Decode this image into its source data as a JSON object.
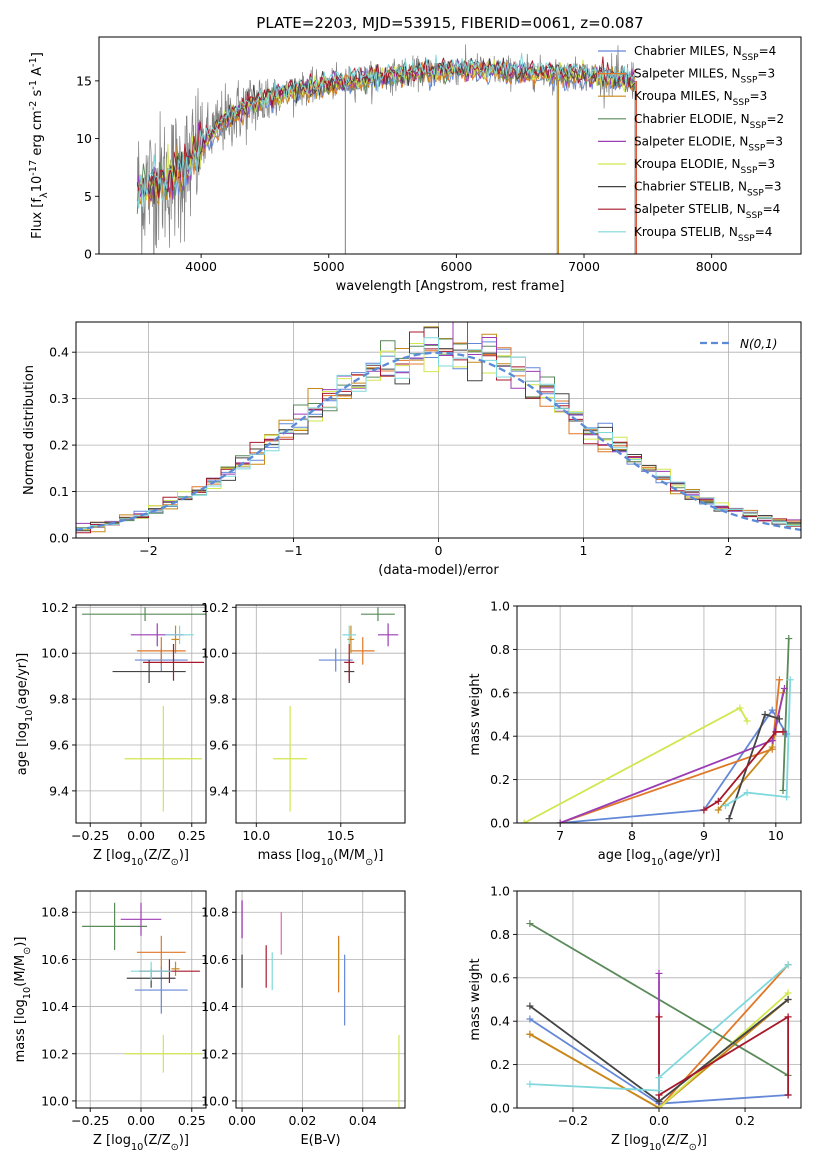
{
  "colors": {
    "Chabrier MILES": "#6488d8",
    "Salpeter MILES": "#e07828",
    "Kroupa MILES": "#c8881a",
    "Chabrier ELODIE": "#5a8a5a",
    "Salpeter ELODIE": "#9b3db5",
    "Kroupa ELODIE": "#d2e64e",
    "Chabrier STELIB": "#444444",
    "Salpeter STELIB": "#a8182a",
    "Kroupa STELIB": "#7ed8dc",
    "normal": "#5b8ad6",
    "data": "#7f7f7f",
    "pink": "#e06aa0"
  },
  "chart_data": [
    {
      "id": "spectrum",
      "type": "line",
      "title": "PLATE=2203, MJD=53915, FIBERID=0061, z=0.087",
      "xlabel": "wavelength [Angstrom, rest frame]",
      "ylabel": "Flux [f$_\\lambda$10$^{-17}$ erg cm$^{-2}$ s$^{-1}$ A$^{-1}$]",
      "xlim": [
        3200,
        8700
      ],
      "ylim": [
        0,
        18.8
      ],
      "xticks": [
        4000,
        5000,
        6000,
        7000,
        8000
      ],
      "yticks": [
        0,
        5,
        10,
        15
      ],
      "grid": false,
      "legend_position": "top-right",
      "continuum_x": [
        3500,
        3600,
        3700,
        3800,
        3900,
        4000,
        4200,
        4400,
        4600,
        4800,
        5000,
        5200,
        5400,
        5600,
        5800,
        6000,
        6200,
        6400,
        6600,
        6800,
        7000,
        7200,
        7400,
        7600,
        7800,
        8000,
        8200,
        8350
      ],
      "continuum_y": [
        5.5,
        6.0,
        6.3,
        6.8,
        7.5,
        9.5,
        11.8,
        13.0,
        13.8,
        14.3,
        14.7,
        15.0,
        15.3,
        15.6,
        15.8,
        16.0,
        16.0,
        15.8,
        15.7,
        15.6,
        15.5,
        15.2,
        15.0,
        14.9,
        14.8,
        14.7,
        14.6,
        14.6
      ],
      "series": [
        {
          "name": "Chabrier MILES, N$_{SSP}$=4"
        },
        {
          "name": "Salpeter MILES, N$_{SSP}$=3"
        },
        {
          "name": "Kroupa MILES, N$_{SSP}$=3"
        },
        {
          "name": "Chabrier ELODIE, N$_{SSP}$=2"
        },
        {
          "name": "Salpeter ELODIE, N$_{SSP}$=3"
        },
        {
          "name": "Kroupa ELODIE, N$_{SSP}$=3"
        },
        {
          "name": "Chabrier STELIB, N$_{SSP}$=3"
        },
        {
          "name": "Salpeter STELIB, N$_{SSP}$=4"
        },
        {
          "name": "Kroupa STELIB, N$_{SSP}$=4"
        }
      ]
    },
    {
      "id": "residuals",
      "type": "line",
      "xlabel": "(data-model)/error",
      "ylabel": "Normed distribution",
      "xlim": [
        -2.5,
        2.5
      ],
      "ylim": [
        0,
        0.465
      ],
      "xticks": [
        -2,
        -1,
        0,
        1,
        2
      ],
      "yticks": [
        0.0,
        0.1,
        0.2,
        0.3,
        0.4
      ],
      "grid": true,
      "legend_position": "top-right",
      "legend": "$\\mathcal{N}(0,1)$",
      "bin_width": 0.1,
      "normal": {
        "mean": 0,
        "sd": 1
      }
    },
    {
      "id": "age_vs_Z",
      "type": "scatter",
      "xlabel": "Z [log$_{10}$($Z/Z_\\odot$)]",
      "ylabel": "age  [log$_{10}$($age/yr$)]",
      "xlim": [
        -0.32,
        0.32
      ],
      "ylim": [
        9.26,
        10.21
      ],
      "xticks": [
        -0.25,
        0.0,
        0.25
      ],
      "yticks": [
        9.4,
        9.6,
        9.8,
        10.0,
        10.2
      ],
      "grid": true,
      "points": [
        {
          "model": "Chabrier MILES",
          "x": 0.1,
          "y": 9.97,
          "xerr": 0.13,
          "yerr": 0.05
        },
        {
          "model": "Salpeter MILES",
          "x": 0.1,
          "y": 10.01,
          "xerr": 0.12,
          "yerr": 0.06
        },
        {
          "model": "Kroupa MILES",
          "x": 0.17,
          "y": 10.06,
          "xerr": 0.02,
          "yerr": 0.06
        },
        {
          "model": "Chabrier ELODIE",
          "x": 0.02,
          "y": 10.17,
          "xerr": 0.31,
          "yerr": 0.03
        },
        {
          "model": "Salpeter ELODIE",
          "x": 0.08,
          "y": 10.08,
          "xerr": 0.13,
          "yerr": 0.05
        },
        {
          "model": "Kroupa ELODIE",
          "x": 0.11,
          "y": 9.54,
          "xerr": 0.19,
          "yerr": 0.23
        },
        {
          "model": "Chabrier STELIB",
          "x": 0.04,
          "y": 9.92,
          "xerr": 0.18,
          "yerr": 0.05
        },
        {
          "model": "Salpeter STELIB",
          "x": 0.16,
          "y": 9.96,
          "xerr": 0.15,
          "yerr": 0.08
        },
        {
          "model": "Kroupa STELIB",
          "x": 0.19,
          "y": 10.08,
          "xerr": 0.07,
          "yerr": 0.04
        }
      ]
    },
    {
      "id": "age_vs_mass",
      "type": "scatter",
      "xlabel": "mass [log$_{10}$($M/M_\\odot$)]",
      "ylabel": "",
      "xlim": [
        9.88,
        10.88
      ],
      "ylim": [
        9.26,
        10.21
      ],
      "xticks": [
        10.0,
        10.5
      ],
      "yticks": [
        9.4,
        9.6,
        9.8,
        10.0,
        10.2
      ],
      "grid": true,
      "points": [
        {
          "model": "Chabrier MILES",
          "x": 10.47,
          "y": 9.97,
          "xerr": 0.1,
          "yerr": 0.05
        },
        {
          "model": "Salpeter MILES",
          "x": 10.63,
          "y": 10.01,
          "xerr": 0.07,
          "yerr": 0.06
        },
        {
          "model": "Kroupa MILES",
          "x": 10.56,
          "y": 10.06,
          "xerr": 0.02,
          "yerr": 0.06
        },
        {
          "model": "Chabrier ELODIE",
          "x": 10.72,
          "y": 10.17,
          "xerr": 0.1,
          "yerr": 0.03
        },
        {
          "model": "Salpeter ELODIE",
          "x": 10.78,
          "y": 10.08,
          "xerr": 0.06,
          "yerr": 0.05
        },
        {
          "model": "Kroupa ELODIE",
          "x": 10.2,
          "y": 9.54,
          "xerr": 0.1,
          "yerr": 0.23
        },
        {
          "model": "Chabrier STELIB",
          "x": 10.55,
          "y": 9.92,
          "xerr": 0.03,
          "yerr": 0.05
        },
        {
          "model": "Salpeter STELIB",
          "x": 10.55,
          "y": 9.96,
          "xerr": 0.03,
          "yerr": 0.08
        },
        {
          "model": "Kroupa STELIB",
          "x": 10.55,
          "y": 10.08,
          "xerr": 0.04,
          "yerr": 0.04
        }
      ]
    },
    {
      "id": "weight_vs_age",
      "type": "line",
      "xlabel": "age  [log$_{10}$($age/yr$)]",
      "ylabel": "mass weight",
      "xlim": [
        6.4,
        10.35
      ],
      "ylim": [
        0,
        1.0
      ],
      "xticks": [
        7,
        8,
        9,
        10
      ],
      "yticks": [
        0.0,
        0.2,
        0.4,
        0.6,
        0.8,
        1.0
      ],
      "grid": true,
      "series": [
        {
          "model": "Chabrier MILES",
          "x": [
            7.0,
            9.0,
            9.95,
            10.15
          ],
          "y": [
            0.0,
            0.06,
            0.52,
            0.41
          ]
        },
        {
          "model": "Salpeter MILES",
          "x": [
            7.0,
            9.95,
            10.05
          ],
          "y": [
            0.0,
            0.34,
            0.66
          ]
        },
        {
          "model": "Kroupa MILES",
          "x": [
            9.2,
            9.95,
            10.1
          ],
          "y": [
            0.06,
            0.35,
            0.6
          ]
        },
        {
          "model": "Chabrier ELODIE",
          "x": [
            10.1,
            10.18
          ],
          "y": [
            0.15,
            0.85
          ]
        },
        {
          "model": "Salpeter ELODIE",
          "x": [
            7.0,
            9.95,
            10.12
          ],
          "y": [
            0.0,
            0.38,
            0.62
          ]
        },
        {
          "model": "Kroupa ELODIE",
          "x": [
            6.5,
            9.5,
            9.6
          ],
          "y": [
            0.0,
            0.53,
            0.47
          ]
        },
        {
          "model": "Chabrier STELIB",
          "x": [
            9.35,
            9.85,
            10.05
          ],
          "y": [
            0.02,
            0.5,
            0.48
          ]
        },
        {
          "model": "Salpeter STELIB",
          "x": [
            9.0,
            9.2,
            10.0,
            10.1
          ],
          "y": [
            0.06,
            0.1,
            0.42,
            0.42
          ]
        },
        {
          "model": "Kroupa STELIB",
          "x": [
            9.3,
            9.6,
            10.15,
            10.2
          ],
          "y": [
            0.08,
            0.14,
            0.12,
            0.66
          ]
        }
      ]
    },
    {
      "id": "mass_vs_Z",
      "type": "scatter",
      "xlabel": "Z [log$_{10}$($Z/Z_\\odot$)]",
      "ylabel": "mass [log$_{10}$($M/M_\\odot$)]",
      "xlim": [
        -0.32,
        0.32
      ],
      "ylim": [
        9.97,
        10.89
      ],
      "xticks": [
        -0.25,
        0.0,
        0.25
      ],
      "yticks": [
        10.0,
        10.2,
        10.4,
        10.6,
        10.8
      ],
      "grid": true,
      "points": [
        {
          "model": "Chabrier MILES",
          "x": 0.1,
          "y": 10.47,
          "xerr": 0.13,
          "yerr": 0.1
        },
        {
          "model": "Salpeter MILES",
          "x": 0.1,
          "y": 10.63,
          "xerr": 0.12,
          "yerr": 0.07
        },
        {
          "model": "Kroupa MILES",
          "x": 0.17,
          "y": 10.56,
          "xerr": 0.02,
          "yerr": 0.03
        },
        {
          "model": "Chabrier ELODIE",
          "x": -0.13,
          "y": 10.74,
          "xerr": 0.16,
          "yerr": 0.1
        },
        {
          "model": "Salpeter ELODIE",
          "x": 0.0,
          "y": 10.77,
          "xerr": 0.1,
          "yerr": 0.07
        },
        {
          "model": "Kroupa ELODIE",
          "x": 0.11,
          "y": 10.2,
          "xerr": 0.19,
          "yerr": 0.08
        },
        {
          "model": "Chabrier STELIB",
          "x": 0.05,
          "y": 10.52,
          "xerr": 0.12,
          "yerr": 0.04
        },
        {
          "model": "Salpeter STELIB",
          "x": 0.14,
          "y": 10.55,
          "xerr": 0.15,
          "yerr": 0.05
        },
        {
          "model": "Kroupa STELIB",
          "x": 0.05,
          "y": 10.55,
          "xerr": 0.1,
          "yerr": 0.04
        }
      ]
    },
    {
      "id": "mass_vs_EBV",
      "type": "scatter",
      "xlabel": "E(B-V)",
      "ylabel": "",
      "xlim": [
        -0.002,
        0.054
      ],
      "ylim": [
        9.97,
        10.89
      ],
      "xticks": [
        0.0,
        0.02,
        0.04
      ],
      "yticks": [
        10.0,
        10.2,
        10.4,
        10.6,
        10.8
      ],
      "grid": true,
      "points": [
        {
          "model": "Chabrier MILES",
          "x": 0.034,
          "y": 10.47,
          "xerr": 0,
          "yerr": 0.15
        },
        {
          "model": "Salpeter MILES",
          "x": 0.032,
          "y": 10.58,
          "xerr": 0,
          "yerr": 0.12
        },
        {
          "model": "Kroupa MILES",
          "x": 0.032,
          "y": 10.6,
          "xerr": 0,
          "yerr": 0.08
        },
        {
          "model": "Chabrier ELODIE",
          "x": 0.0,
          "y": 10.55,
          "xerr": 0,
          "yerr": 0.07
        },
        {
          "model": "Salpeter ELODIE",
          "x": 0.0,
          "y": 10.77,
          "xerr": 0,
          "yerr": 0.08
        },
        {
          "model": "Kroupa ELODIE",
          "x": 0.052,
          "y": 10.12,
          "xerr": 0,
          "yerr": 0.16
        },
        {
          "model": "Chabrier STELIB",
          "x": 0.0,
          "y": 10.55,
          "xerr": 0,
          "yerr": 0.07
        },
        {
          "model": "Salpeter STELIB",
          "x": 0.008,
          "y": 10.57,
          "xerr": 0,
          "yerr": 0.09
        },
        {
          "model": "Kroupa STELIB",
          "x": 0.01,
          "y": 10.55,
          "xerr": 0,
          "yerr": 0.08
        }
      ],
      "extra_points": [
        {
          "color": "pink",
          "x": 0.013,
          "y": 10.71,
          "yerr": 0.09
        },
        {
          "color": "Salpeter ELODIE",
          "x": 0.0,
          "y": 10.77,
          "yerr": 0.08
        }
      ]
    },
    {
      "id": "weight_vs_Z",
      "type": "line",
      "xlabel": "Z [log$_{10}$($Z/Z_\\odot$)]",
      "ylabel": "mass weight",
      "xlim": [
        -0.33,
        0.33
      ],
      "ylim": [
        0,
        1.0
      ],
      "xticks": [
        -0.2,
        0.0,
        0.2
      ],
      "yticks": [
        0.0,
        0.2,
        0.4,
        0.6,
        0.8,
        1.0
      ],
      "grid": true,
      "series": [
        {
          "model": "Chabrier MILES",
          "x": [
            -0.3,
            0.0,
            0.3
          ],
          "y": [
            0.41,
            0.02,
            0.06
          ]
        },
        {
          "model": "Salpeter MILES",
          "x": [
            -0.3,
            0.0,
            0.3
          ],
          "y": [
            0.34,
            0.0,
            0.66
          ]
        },
        {
          "model": "Kroupa MILES",
          "x": [
            -0.3,
            0.0,
            0.3
          ],
          "y": [
            0.34,
            0.0,
            0.5
          ]
        },
        {
          "model": "Chabrier ELODIE",
          "x": [
            -0.3,
            0.3
          ],
          "y": [
            0.85,
            0.15
          ]
        },
        {
          "model": "Salpeter ELODIE",
          "x": [
            0.0,
            0.0
          ],
          "y": [
            0.0,
            0.62
          ]
        },
        {
          "model": "Kroupa ELODIE",
          "x": [
            0.0,
            0.3
          ],
          "y": [
            0.0,
            0.53
          ]
        },
        {
          "model": "Chabrier STELIB",
          "x": [
            -0.3,
            0.0,
            0.3
          ],
          "y": [
            0.47,
            0.03,
            0.5
          ]
        },
        {
          "model": "Salpeter STELIB",
          "x": [
            0.0,
            0.0,
            0.3,
            0.3
          ],
          "y": [
            0.42,
            0.06,
            0.42,
            0.06
          ]
        },
        {
          "model": "Kroupa STELIB",
          "x": [
            -0.3,
            0.0,
            0.0,
            0.3
          ],
          "y": [
            0.11,
            0.08,
            0.14,
            0.66
          ]
        }
      ]
    }
  ]
}
